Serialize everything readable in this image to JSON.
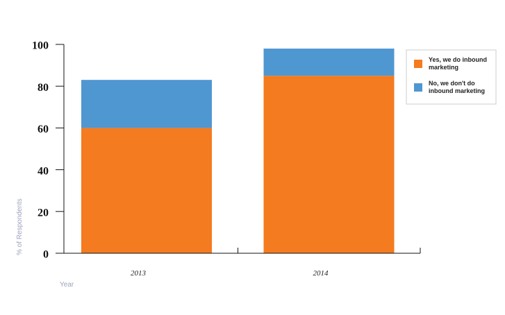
{
  "chart_data": {
    "type": "stacked-bar",
    "x_label": "Year",
    "y_label": "% of Respondents",
    "categories": [
      "2013",
      "2014"
    ],
    "series": [
      {
        "name": "Yes, we do inbound marketing",
        "color": "#f47b20",
        "values": [
          60,
          85
        ]
      },
      {
        "name": "No, we don't do inbound marketing",
        "color": "#4f97d1",
        "values": [
          23,
          13
        ]
      }
    ],
    "ylim": [
      0,
      100
    ],
    "yticks": [
      0,
      20,
      40,
      60,
      80,
      100
    ],
    "legend": "top-right"
  }
}
